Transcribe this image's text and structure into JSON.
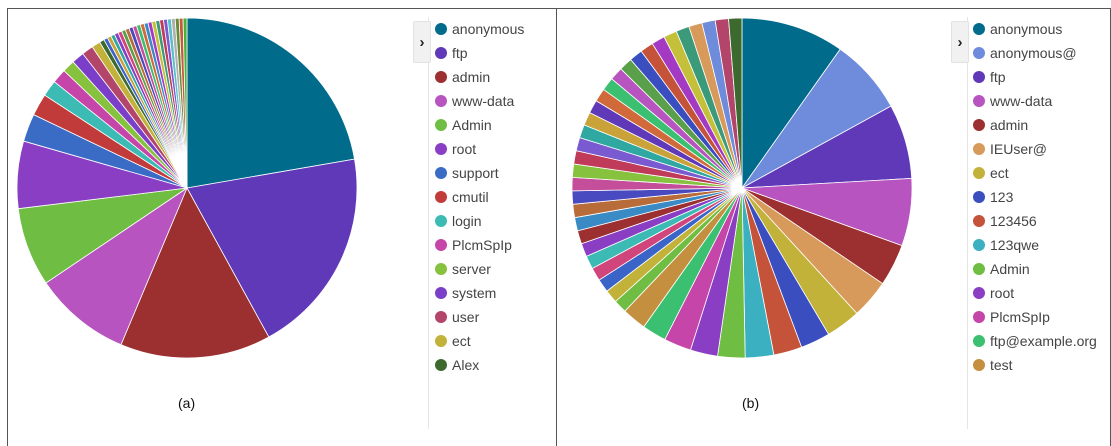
{
  "panels": [
    {
      "caption": "(a)",
      "toggle_glyph": "›",
      "legend": [
        "anonymous",
        "ftp",
        "admin",
        "www-data",
        "Admin",
        "root",
        "support",
        "cmutil",
        "login",
        "PlcmSpIp",
        "server",
        "system",
        "user",
        "ect",
        "Alex"
      ]
    },
    {
      "caption": "(b)",
      "toggle_glyph": "›",
      "legend": [
        "anonymous",
        "anonymous@",
        "ftp",
        "www-data",
        "admin",
        "IEUser@",
        "ect",
        "123",
        "123456",
        "123qwe",
        "Admin",
        "root",
        "PlcmSpIp",
        "ftp@example.org",
        "test"
      ]
    }
  ],
  "chart_data": [
    {
      "type": "pie",
      "title": "",
      "legend_position": "right",
      "labels": [
        "anonymous",
        "ftp",
        "admin",
        "www-data",
        "Admin",
        "root",
        "support",
        "cmutil",
        "login",
        "PlcmSpIp",
        "server",
        "system",
        "user",
        "ect",
        "Alex"
      ],
      "values": [
        24.4,
        21.6,
        15.7,
        10.1,
        8.2,
        7.0,
        2.9,
        2.3,
        1.7,
        1.5,
        1.3,
        1.3,
        1.2,
        0.9,
        0.5
      ],
      "colors": [
        "#006b8a",
        "#6039b8",
        "#9c2f2f",
        "#b854c0",
        "#6fbe43",
        "#8a3ec4",
        "#3a6cc6",
        "#c23b3b",
        "#3bbbb4",
        "#c645a8",
        "#87c23f",
        "#7b3ec8",
        "#b4456a",
        "#c2b23a",
        "#3c6a2e"
      ],
      "other_colors": [
        "#3a64c8",
        "#c9a23a",
        "#2ea8a0",
        "#8a3ec4",
        "#d0457c",
        "#5aa04a",
        "#b86c3a",
        "#4a4ac0",
        "#c44e9a",
        "#3ac070",
        "#d06a3a",
        "#3a8ac6",
        "#a43ac4",
        "#c4c03a",
        "#3a9a7a",
        "#c03a5a",
        "#7a5ad0",
        "#5ac0c8",
        "#b0b0b0",
        "#6a8a3a",
        "#c45a3a",
        "#4ab03a"
      ],
      "other_total": 8.9
    },
    {
      "type": "pie",
      "title": "",
      "legend_position": "right",
      "labels": [
        "anonymous",
        "anonymous@",
        "ftp",
        "www-data",
        "admin",
        "IEUser@",
        "ect",
        "123",
        "123456",
        "123qwe",
        "Admin",
        "root",
        "PlcmSpIp",
        "ftp@example.org",
        "test"
      ],
      "values": [
        9.8,
        7.2,
        7.1,
        6.4,
        4.0,
        3.7,
        3.3,
        2.8,
        2.7,
        2.7,
        2.6,
        2.6,
        2.6,
        2.3,
        2.3
      ],
      "colors": [
        "#006b8a",
        "#6f8bdc",
        "#6039b8",
        "#b854c0",
        "#9c2f2f",
        "#d89a5a",
        "#c2b23a",
        "#3a4ec0",
        "#c4533a",
        "#3ab0c0",
        "#6fbe43",
        "#8a3ec4",
        "#c645a8",
        "#3ac070",
        "#c49040"
      ],
      "other_colors": [
        "#6fbe43",
        "#c2b23a",
        "#3a64c8",
        "#d0457c",
        "#3bbbb4",
        "#8a3ec4",
        "#9c2f2f",
        "#3a8ac6",
        "#b86c3a",
        "#4a4ac0",
        "#c44e9a",
        "#87c23f",
        "#c03a5a",
        "#7a5ad0",
        "#2ea8a0",
        "#c9a23a",
        "#6039b8",
        "#d06a3a",
        "#3ac070",
        "#b854c0",
        "#5aa04a",
        "#3a4ec0",
        "#c4533a",
        "#a43ac4",
        "#c4c03a",
        "#3a9a7a",
        "#d89a5a",
        "#6f8bdc",
        "#b4456a",
        "#3c6a2e"
      ],
      "other_total": 37.9
    }
  ]
}
